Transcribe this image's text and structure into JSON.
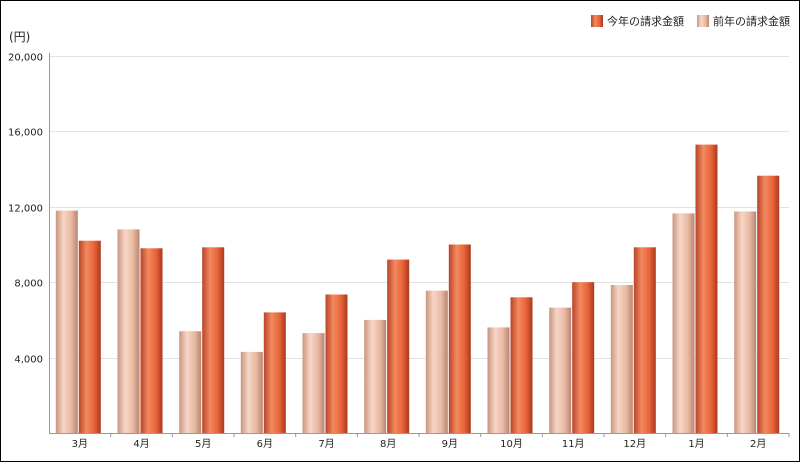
{
  "chart_data": {
    "type": "bar",
    "unit_label": "(円)",
    "categories": [
      "3月",
      "4月",
      "5月",
      "6月",
      "7月",
      "8月",
      "9月",
      "10月",
      "11月",
      "12月",
      "1月",
      "2月"
    ],
    "series": [
      {
        "name": "前年の請求金額",
        "color": "#e8b9a3",
        "values": [
          11800,
          10800,
          5400,
          4300,
          5300,
          6000,
          7550,
          5600,
          6650,
          7850,
          11650,
          11750
        ]
      },
      {
        "name": "今年の請求金額",
        "color": "#e8643a",
        "values": [
          10200,
          9800,
          9850,
          6400,
          7350,
          9200,
          10000,
          7200,
          8000,
          9850,
          15300,
          13650
        ]
      }
    ],
    "legend_order": [
      1,
      0
    ],
    "y_ticks": [
      "4,000",
      "8,000",
      "12,000",
      "16,000",
      "20,000"
    ],
    "y_tick_values": [
      4000,
      8000,
      12000,
      16000,
      20000
    ],
    "ylim": [
      0,
      20000
    ],
    "grid": true,
    "legend_position": "top-right"
  }
}
